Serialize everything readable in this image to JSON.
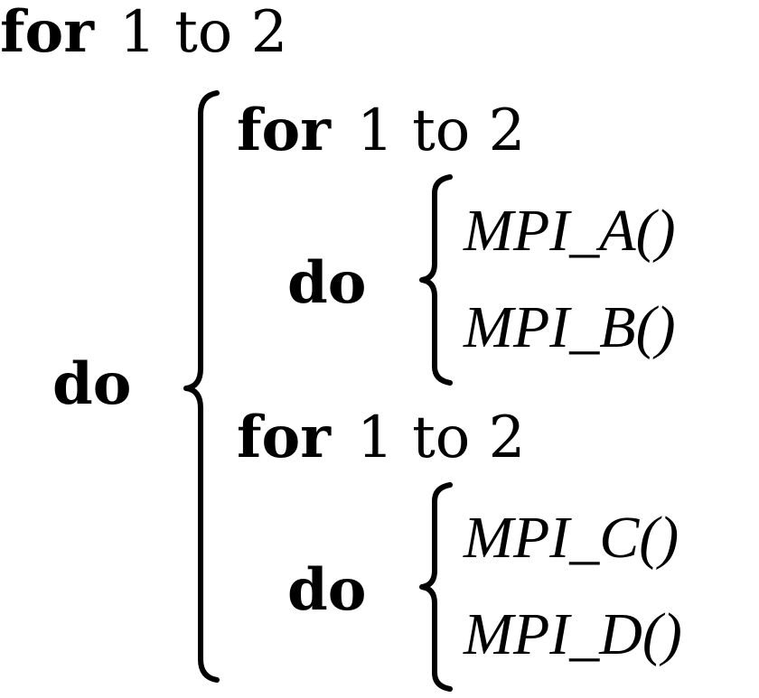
{
  "outer_loop": {
    "keyword": "for",
    "range": "1 to 2",
    "do": "do"
  },
  "inner_loop_1": {
    "keyword": "for",
    "range": "1 to 2",
    "do": "do",
    "calls": [
      "MPI_A()",
      "MPI_B()"
    ]
  },
  "inner_loop_2": {
    "keyword": "for",
    "range": "1 to 2",
    "do": "do",
    "calls": [
      "MPI_C()",
      "MPI_D()"
    ]
  },
  "colors": {
    "text": "#000000",
    "background": "#ffffff"
  }
}
